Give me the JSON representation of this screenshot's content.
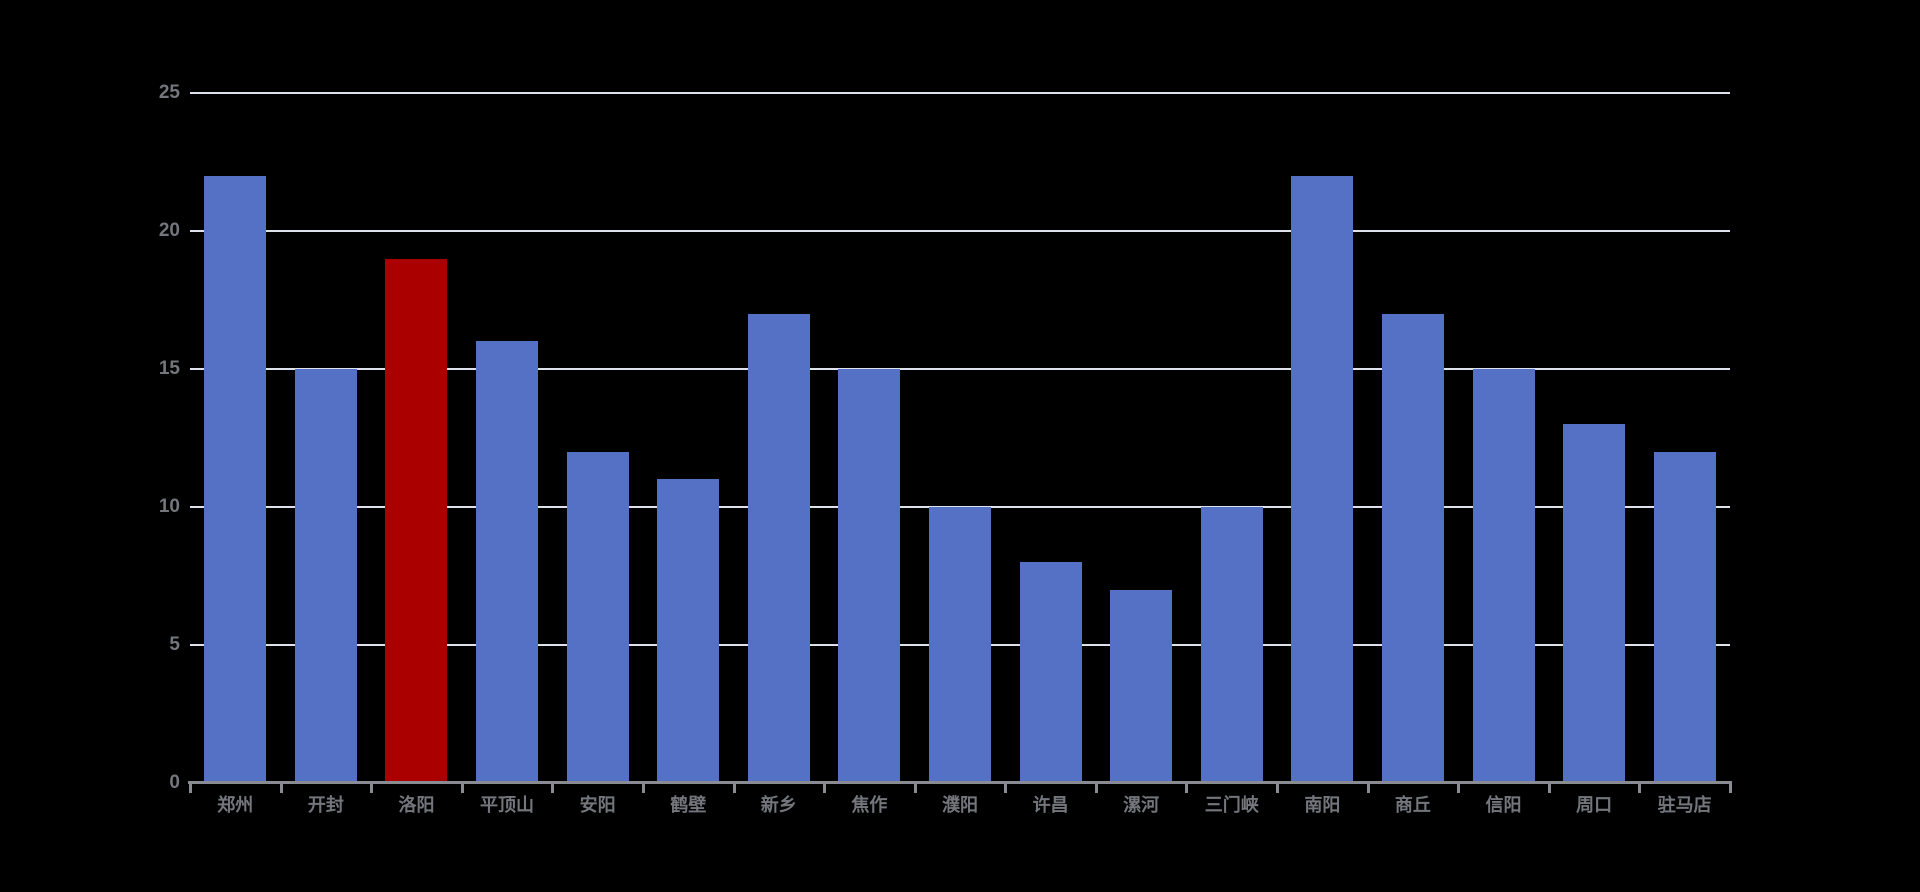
{
  "page": {
    "background": "#000000"
  },
  "chart_data": {
    "type": "bar",
    "title": "",
    "xlabel": "",
    "ylabel": "",
    "categories": [
      "郑州",
      "开封",
      "洛阳",
      "平顶山",
      "安阳",
      "鹤壁",
      "新乡",
      "焦作",
      "濮阳",
      "许昌",
      "漯河",
      "三门峡",
      "南阳",
      "商丘",
      "信阳",
      "周口",
      "驻马店"
    ],
    "values": [
      22,
      15,
      19,
      16,
      12,
      11,
      17,
      15,
      10,
      8,
      7,
      10,
      22,
      17,
      15,
      13,
      12
    ],
    "highlight": {
      "category": "洛阳",
      "index": 2,
      "value": 19
    },
    "ylim": [
      0,
      25
    ],
    "yticks": [
      0,
      5,
      10,
      15,
      20,
      25
    ],
    "grid": true,
    "legend": "none",
    "colors": {
      "background": "#000000",
      "bar": "#5571C6",
      "highlight_bar": "#AA0000",
      "gridline": "#DDE1EC",
      "axis_line": "#888C92",
      "tick_mark": "#888C92",
      "axis_label": "#73767C"
    }
  }
}
